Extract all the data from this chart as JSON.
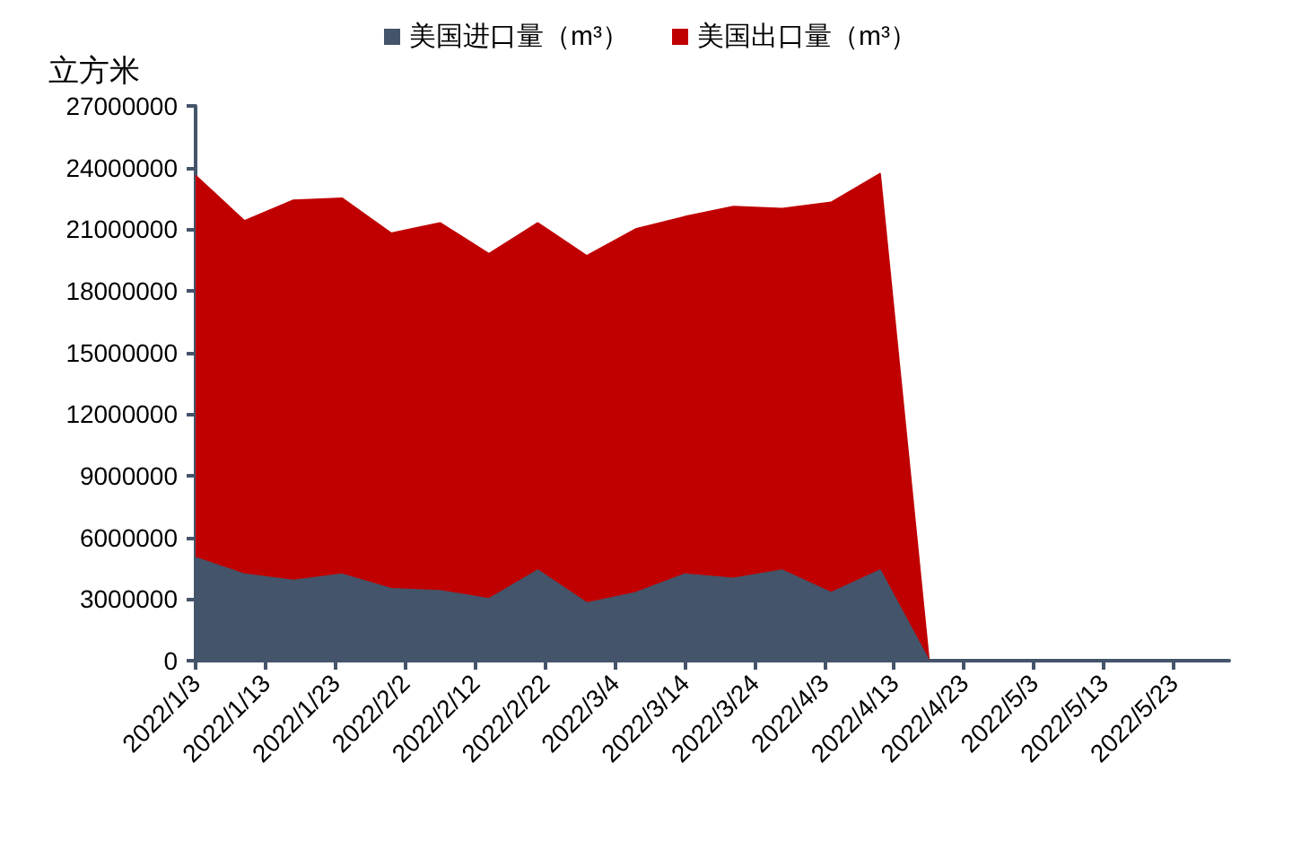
{
  "chart_data": {
    "type": "area",
    "stacked": true,
    "ylabel": "立方米",
    "legend": "top",
    "grid": false,
    "marker": "none",
    "x": [
      "2022-01-03",
      "2022-01-10",
      "2022-01-17",
      "2022-01-24",
      "2022-01-31",
      "2022-02-07",
      "2022-02-14",
      "2022-02-21",
      "2022-02-28",
      "2022-03-07",
      "2022-03-14",
      "2022-03-21",
      "2022-03-28",
      "2022-04-04",
      "2022-04-11",
      "2022-04-18"
    ],
    "series": [
      {
        "name": "美国进口量（m³）",
        "color": "#44546a",
        "values": [
          5000000,
          4200000,
          3900000,
          4200000,
          3500000,
          3400000,
          3000000,
          4400000,
          2800000,
          3300000,
          4200000,
          4000000,
          4400000,
          3300000,
          4400000,
          0
        ]
      },
      {
        "name": "美国出口量（m³）",
        "color": "#c00000",
        "values": [
          18600000,
          17200000,
          18500000,
          18300000,
          17300000,
          17900000,
          16800000,
          16900000,
          16900000,
          17700000,
          17400000,
          18100000,
          17600000,
          19000000,
          19300000,
          0
        ]
      }
    ],
    "ylim": [
      0,
      27000000
    ],
    "yticks": [
      0,
      3000000,
      6000000,
      9000000,
      12000000,
      15000000,
      18000000,
      21000000,
      24000000,
      27000000
    ],
    "xlim": [
      "2022-01-03",
      "2022-05-31"
    ],
    "xticks": [
      {
        "value": "2022-01-03",
        "label": "2022/1/3"
      },
      {
        "value": "2022-01-13",
        "label": "2022/1/13"
      },
      {
        "value": "2022-01-23",
        "label": "2022/1/23"
      },
      {
        "value": "2022-02-02",
        "label": "2022/2/2"
      },
      {
        "value": "2022-02-12",
        "label": "2022/2/12"
      },
      {
        "value": "2022-02-22",
        "label": "2022/2/22"
      },
      {
        "value": "2022-03-04",
        "label": "2022/3/4"
      },
      {
        "value": "2022-03-14",
        "label": "2022/3/14"
      },
      {
        "value": "2022-03-24",
        "label": "2022/3/24"
      },
      {
        "value": "2022-04-03",
        "label": "2022/4/3"
      },
      {
        "value": "2022-04-13",
        "label": "2022/4/13"
      },
      {
        "value": "2022-04-23",
        "label": "2022/4/23"
      },
      {
        "value": "2022-05-03",
        "label": "2022/5/3"
      },
      {
        "value": "2022-05-13",
        "label": "2022/5/13"
      },
      {
        "value": "2022-05-23",
        "label": "2022/5/23"
      }
    ]
  }
}
